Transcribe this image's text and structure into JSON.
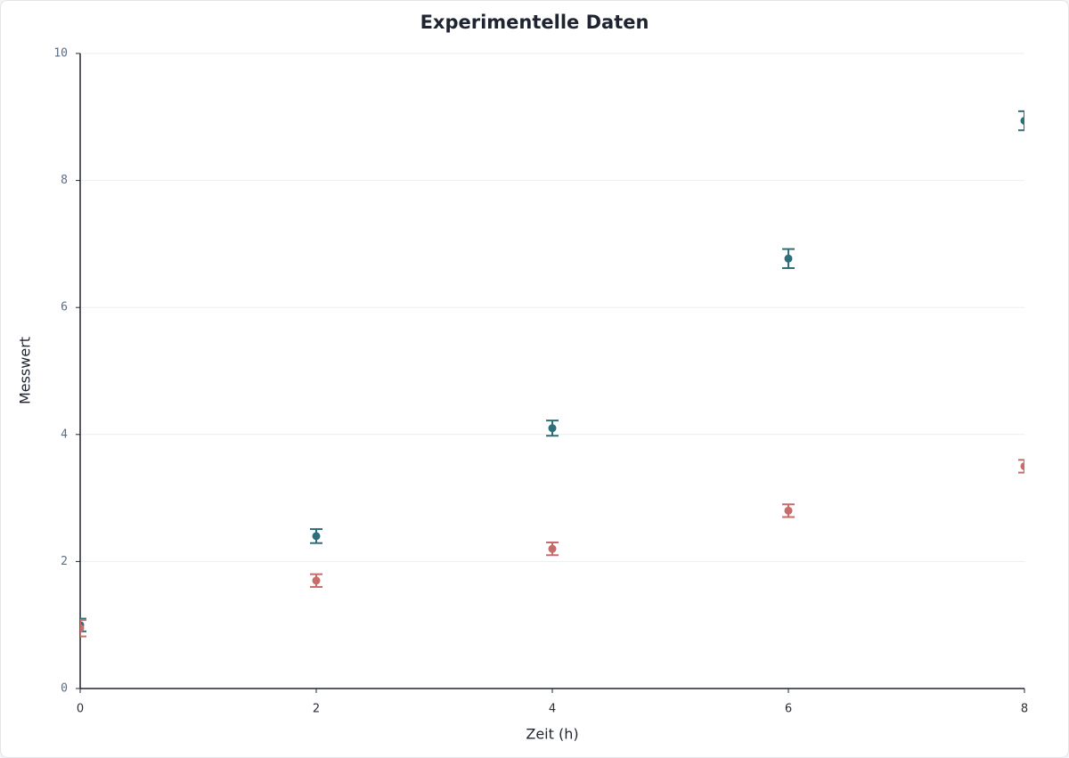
{
  "chart_data": {
    "type": "scatter",
    "title": "Experimentelle Daten",
    "x_label": "Zeit (h)",
    "y_label": "Messwert",
    "series": [
      {
        "color": "#2e6f7c",
        "x": [
          0,
          2,
          4,
          6,
          8
        ],
        "values": [
          1.0,
          2.4,
          4.1,
          6.77,
          8.94
        ],
        "errors": [
          0.1,
          0.11,
          0.12,
          0.15,
          0.15
        ]
      },
      {
        "color": "#c86b6b",
        "x": [
          0,
          2,
          4,
          6,
          8
        ],
        "values": [
          0.95,
          1.7,
          2.2,
          2.8,
          3.5
        ],
        "errors": [
          0.13,
          0.1,
          0.1,
          0.1,
          0.1
        ]
      }
    ],
    "xlim": [
      0,
      8
    ],
    "xticks": [
      0,
      2,
      4,
      6,
      8
    ],
    "ylim": [
      0,
      10
    ],
    "yticks": [
      0,
      2,
      4,
      6,
      8,
      10
    ],
    "grid": true
  }
}
